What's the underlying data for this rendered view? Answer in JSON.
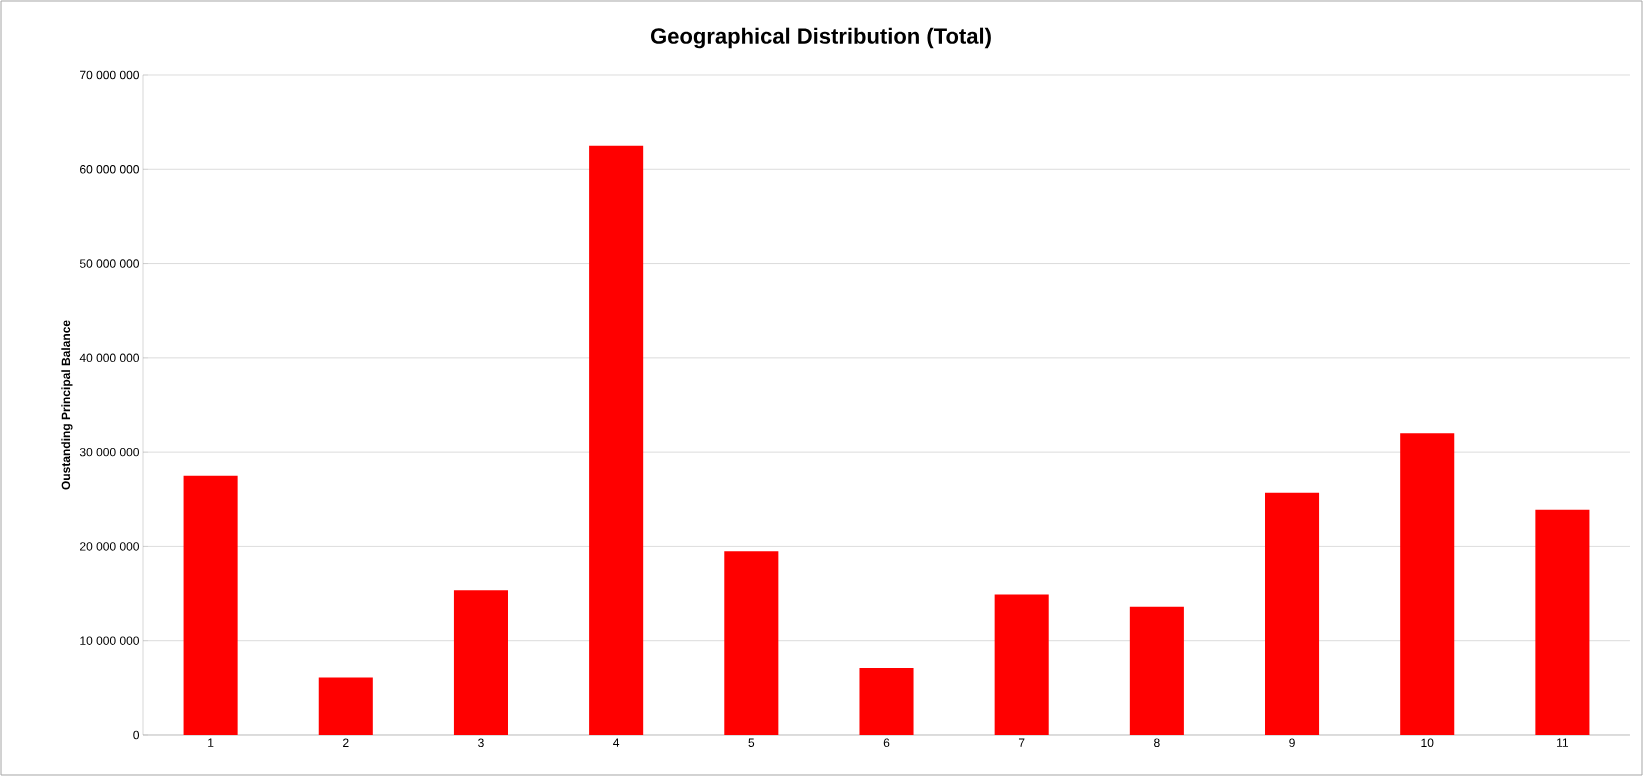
{
  "chart_data": {
    "type": "bar",
    "title": "Geographical Distribution (Total)",
    "ylabel": "Oustanding Principal Balance",
    "categories": [
      "1",
      "2",
      "3",
      "4",
      "5",
      "6",
      "7",
      "8",
      "9",
      "10",
      "11"
    ],
    "values": [
      27500000,
      6100000,
      15350000,
      62500000,
      19500000,
      7100000,
      14900000,
      13600000,
      25700000,
      32000000,
      23900000
    ],
    "color": "#ff0000",
    "ylim": [
      0,
      70000000
    ],
    "yticks": [
      {
        "value": 0,
        "label": "0"
      },
      {
        "value": 10000000,
        "label": "10 000 000"
      },
      {
        "value": 20000000,
        "label": "20 000 000"
      },
      {
        "value": 30000000,
        "label": "30 000 000"
      },
      {
        "value": 40000000,
        "label": "40 000 000"
      },
      {
        "value": 50000000,
        "label": "50 000 000"
      },
      {
        "value": 60000000,
        "label": "60 000 000"
      },
      {
        "value": 70000000,
        "label": "70 000 000"
      }
    ],
    "grid": "y"
  }
}
